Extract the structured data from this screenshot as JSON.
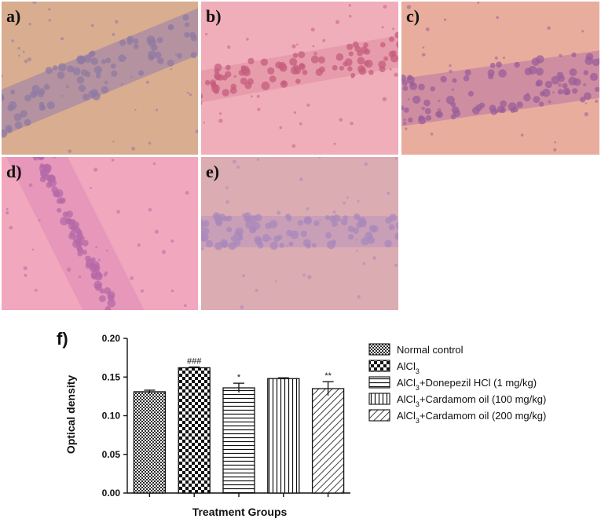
{
  "panels": [
    {
      "label": "a)",
      "bg": "#d9ad90",
      "band": "#a98aa5",
      "cell": "#8f79a3"
    },
    {
      "label": "b)",
      "bg": "#f0aeba",
      "band": "#e596a6",
      "cell": "#c65d7e"
    },
    {
      "label": "c)",
      "bg": "#e9ad9d",
      "band": "#c783a4",
      "cell": "#9a5f98"
    },
    {
      "label": "d)",
      "bg": "#f1a7bd",
      "band": "#e492b8",
      "cell": "#b46aa8"
    },
    {
      "label": "e)",
      "bg": "#dbacb2",
      "band": "#c49bbb",
      "cell": "#a888bb"
    }
  ],
  "chart_data": {
    "type": "bar",
    "panel_label": "f)",
    "ylabel": "Optical density",
    "xlabel": "Treatment Groups",
    "ylim": [
      0,
      0.2
    ],
    "yticks": [
      "0.00",
      "0.05",
      "0.10",
      "0.15",
      "0.20"
    ],
    "categories": [
      "Normal control",
      "AlCl3",
      "AlCl3+Donepezil HCl (1 mg/kg)",
      "AlCl3+Cardamom oil (100 mg/kg)",
      "AlCl3+Cardamom oil (200 mg/kg)"
    ],
    "values": [
      0.131,
      0.162,
      0.136,
      0.148,
      0.135
    ],
    "errors": [
      0.002,
      0.001,
      0.006,
      0.001,
      0.009
    ],
    "annotations": [
      "",
      "###",
      "*",
      "",
      "**"
    ],
    "patterns": [
      "fine-check",
      "checker",
      "horizontal",
      "vertical",
      "diagonal"
    ],
    "legend": [
      {
        "main": "Normal control",
        "sub": "",
        "tail": ""
      },
      {
        "main": "AlCl",
        "sub": "3",
        "tail": ""
      },
      {
        "main": "AlCl",
        "sub": "3",
        "tail": "+Donepezil HCl (1 mg/kg)"
      },
      {
        "main": "AlCl",
        "sub": "3",
        "tail": "+Cardamom oil (100 mg/kg)"
      },
      {
        "main": "AlCl",
        "sub": "3",
        "tail": "+Cardamom oil (200 mg/kg)"
      }
    ],
    "legend_position": "right",
    "grid": false
  }
}
